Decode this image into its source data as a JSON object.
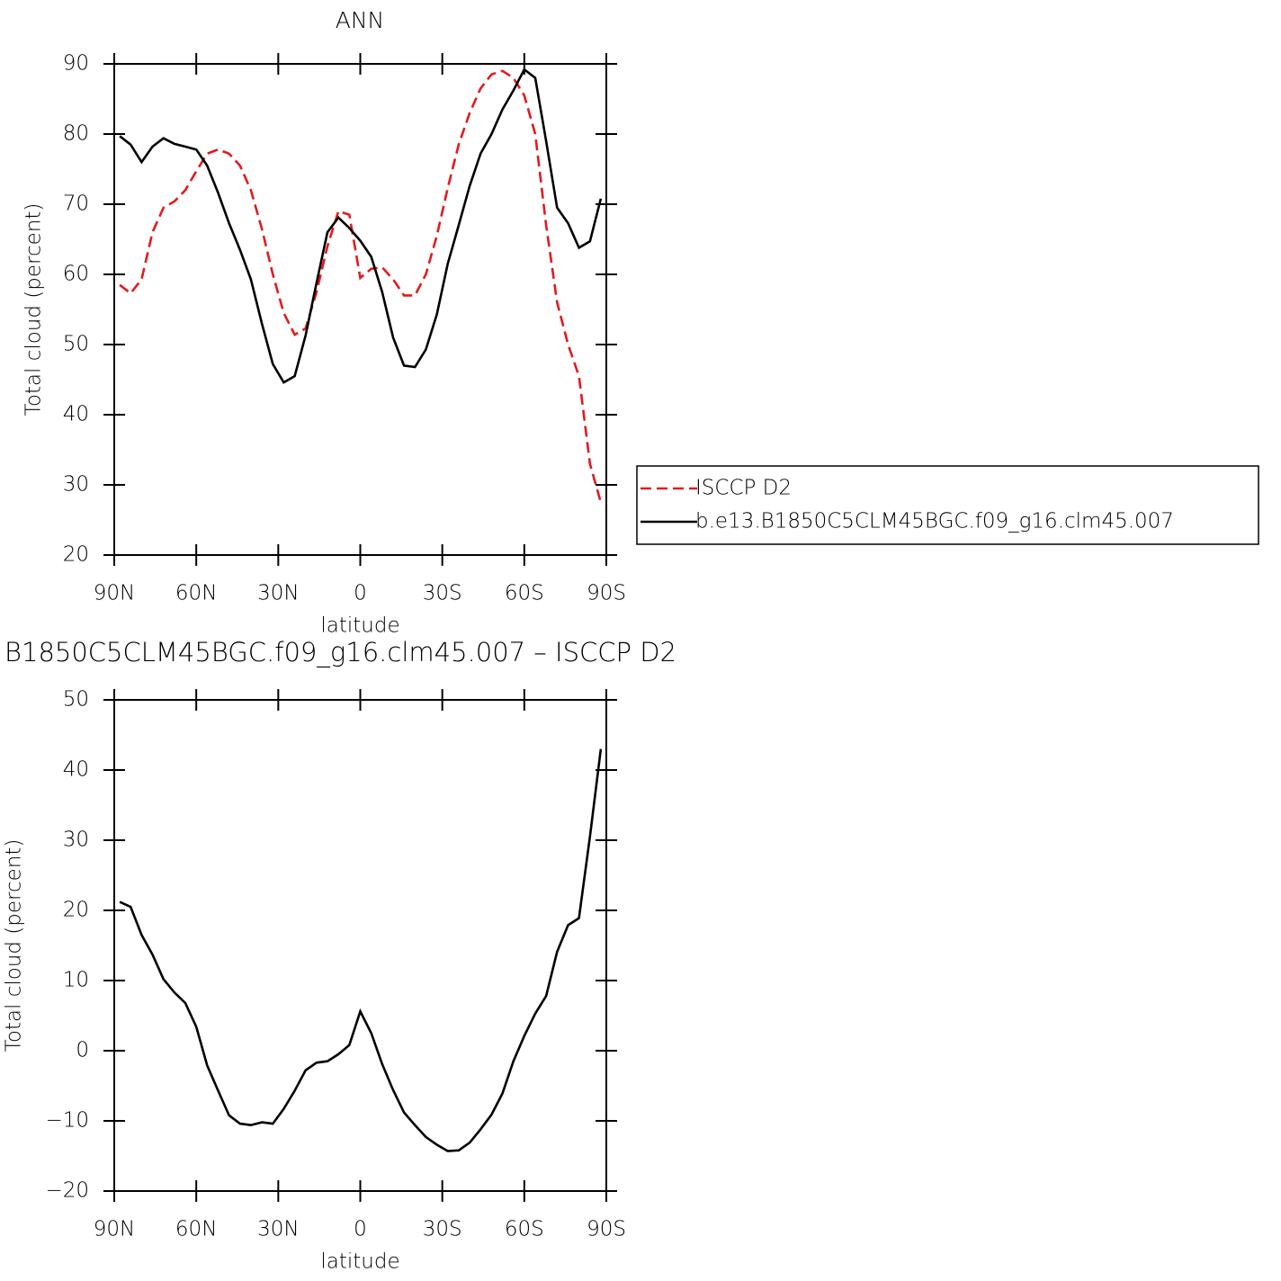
{
  "chart_data": [
    {
      "type": "line",
      "title": "ANN",
      "xlabel": "latitude",
      "ylabel": "Total cloud (percent)",
      "x": [
        88,
        84,
        80,
        76,
        72,
        68,
        64,
        60,
        56,
        52,
        48,
        44,
        40,
        36,
        32,
        28,
        24,
        20,
        16,
        12,
        8,
        4,
        0,
        -4,
        -8,
        -12,
        -16,
        -20,
        -24,
        -28,
        -32,
        -36,
        -40,
        -44,
        -48,
        -52,
        -56,
        -60,
        -64,
        -68,
        -72,
        -76,
        -80,
        -84,
        -88
      ],
      "series": [
        {
          "name": "ISCCP D2",
          "color": "#e41a1c",
          "dashed": true,
          "values": [
            58.5,
            57.3,
            59.3,
            66,
            69.5,
            70.4,
            72,
            74.7,
            77.2,
            77.8,
            77.2,
            75.5,
            72,
            66.5,
            60,
            54.5,
            51.4,
            52.3,
            57.5,
            64,
            69,
            68.5,
            59.5,
            60.8,
            61,
            59.3,
            57,
            57,
            60,
            65.5,
            72.3,
            78.5,
            83,
            86.5,
            88.5,
            89,
            88,
            85.5,
            80,
            67,
            56,
            50,
            45.5,
            33,
            27.5
          ]
        },
        {
          "name": "b.e13.B1850C5CLM45BGC.f09_g16.clm45.007",
          "color": "#000000",
          "dashed": false,
          "values": [
            79.7,
            78.5,
            76,
            78.2,
            79.4,
            78.6,
            78.2,
            77.8,
            75.5,
            71.6,
            67.3,
            63.5,
            59.3,
            53,
            47.2,
            44.6,
            45.5,
            51.3,
            58.8,
            66,
            68.1,
            66.6,
            64.8,
            62.5,
            57.5,
            51,
            47,
            46.8,
            49.3,
            54.3,
            61.5,
            67,
            72.6,
            77.2,
            80,
            83.5,
            86.2,
            89.2,
            88,
            79,
            69.5,
            67.3,
            63.8,
            64.7,
            70.8
          ]
        }
      ],
      "xlim": [
        90,
        -90
      ],
      "xticks": [
        {
          "value": 90,
          "label": "90N"
        },
        {
          "value": 60,
          "label": "60N"
        },
        {
          "value": 30,
          "label": "30N"
        },
        0,
        {
          "value": -30,
          "label": "30S"
        },
        {
          "value": -60,
          "label": "60S"
        },
        {
          "value": -90,
          "label": "90S"
        }
      ],
      "ylim": [
        20,
        90
      ],
      "yticks": [
        20,
        30,
        40,
        50,
        60,
        70,
        80,
        90
      ],
      "grid": false,
      "legend": "right"
    },
    {
      "type": "line",
      "title": "B1850C5CLM45BGC.f09_g16.clm45.007 – ISCCP D2",
      "xlabel": "latitude",
      "ylabel": "Total cloud (percent)",
      "x": [
        88,
        84,
        80,
        76,
        72,
        68,
        64,
        60,
        56,
        52,
        48,
        44,
        40,
        36,
        32,
        28,
        24,
        20,
        16,
        12,
        8,
        4,
        0,
        -4,
        -8,
        -12,
        -16,
        -20,
        -24,
        -28,
        -32,
        -36,
        -40,
        -44,
        -48,
        -52,
        -56,
        -60,
        -64,
        -68,
        -72,
        -76,
        -80,
        -84,
        -88
      ],
      "color": "#000000",
      "values": [
        21.2,
        20.5,
        16.5,
        13.7,
        10.2,
        8.3,
        6.8,
        3.4,
        -2.1,
        -5.7,
        -9.2,
        -10.4,
        -10.6,
        -10.2,
        -10.4,
        -8.3,
        -5.7,
        -2.8,
        -1.7,
        -1.5,
        -0.5,
        0.8,
        5.6,
        2.5,
        -1.9,
        -5.6,
        -8.8,
        -10.6,
        -12.3,
        -13.4,
        -14.3,
        -14.2,
        -13.1,
        -11.2,
        -9.1,
        -6.1,
        -1.5,
        2.1,
        5.3,
        7.8,
        14.1,
        17.9,
        18.9,
        30.5,
        43
      ],
      "xlim": [
        90,
        -90
      ],
      "xticks": [
        {
          "value": 90,
          "label": "90N"
        },
        {
          "value": 60,
          "label": "60N"
        },
        {
          "value": 30,
          "label": "30N"
        },
        0,
        {
          "value": -30,
          "label": "30S"
        },
        {
          "value": -60,
          "label": "60S"
        },
        {
          "value": -90,
          "label": "90S"
        }
      ],
      "ylim": [
        -20,
        50
      ],
      "yticks": [
        {
          "value": -20,
          "label": "−20"
        },
        {
          "value": -10,
          "label": "−10"
        },
        0,
        10,
        20,
        30,
        40,
        50
      ],
      "grid": false
    }
  ]
}
